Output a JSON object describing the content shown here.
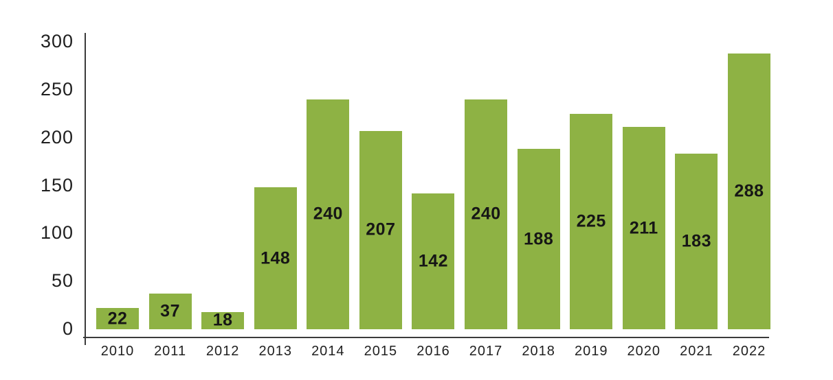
{
  "page": {
    "background": "#ffffff"
  },
  "chart_data": {
    "type": "bar",
    "title": "",
    "xlabel": "",
    "ylabel": "",
    "categories": [
      "2010",
      "2011",
      "2012",
      "2013",
      "2014",
      "2015",
      "2016",
      "2017",
      "2018",
      "2019",
      "2020",
      "2021",
      "2022"
    ],
    "values": [
      22,
      37,
      18,
      148,
      240,
      207,
      142,
      240,
      188,
      225,
      211,
      183,
      288
    ],
    "ylim": [
      0,
      300
    ],
    "yticks": [
      0,
      50,
      100,
      150,
      200,
      250,
      300
    ],
    "grid": false,
    "legend": "none",
    "bar_value_labels_shown": true,
    "colors": {
      "bar": "#8EB244",
      "value_label": "#161616",
      "tick_label": "#1f1f1f",
      "axis_line": "#3a3a3a"
    }
  }
}
